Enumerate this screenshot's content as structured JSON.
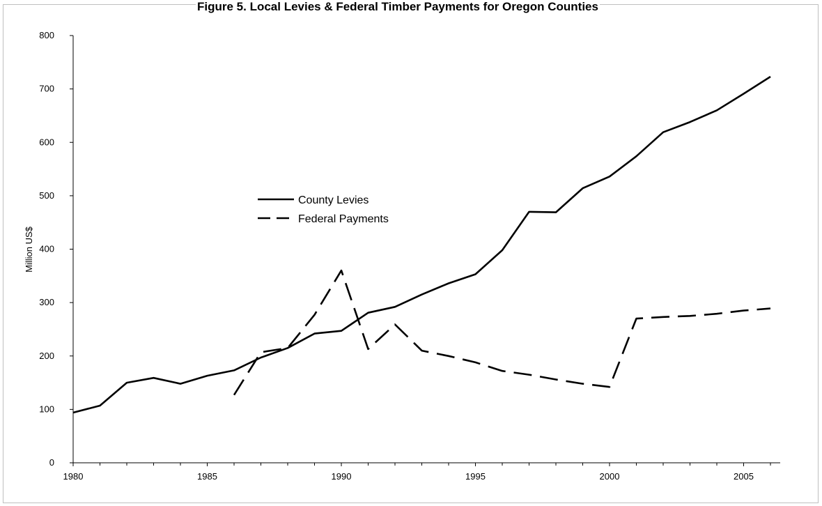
{
  "chart_data": {
    "type": "line",
    "title": "Figure 5. Local Levies & Federal Timber Payments for Oregon Counties",
    "xlabel": "",
    "ylabel": "Million US$",
    "xlim": [
      1980,
      2006
    ],
    "ylim": [
      0,
      800
    ],
    "x_ticks": [
      1980,
      1985,
      1990,
      1995,
      2000,
      2005
    ],
    "y_ticks": [
      0,
      100,
      200,
      300,
      400,
      500,
      600,
      700,
      800
    ],
    "grid": false,
    "legend_position": "left-center",
    "series": [
      {
        "name": "County Levies",
        "style": "solid",
        "color": "#000000",
        "x": [
          1980,
          1981,
          1982,
          1983,
          1984,
          1985,
          1986,
          1987,
          1988,
          1989,
          1990,
          1991,
          1992,
          1993,
          1994,
          1995,
          1996,
          1997,
          1998,
          1999,
          2000,
          2001,
          2002,
          2003,
          2004,
          2005,
          2006
        ],
        "y": [
          94,
          107,
          150,
          159,
          148,
          163,
          173,
          197,
          215,
          242,
          247,
          281,
          292,
          315,
          336,
          353,
          398,
          470,
          469,
          514,
          536,
          574,
          619,
          638,
          660,
          691,
          723
        ]
      },
      {
        "name": "Federal Payments",
        "style": "dashed",
        "color": "#000000",
        "x": [
          1986,
          1987,
          1988,
          1989,
          1990,
          1991,
          1992,
          1993,
          1994,
          1995,
          1996,
          1997,
          1998,
          1999,
          2000,
          2001,
          2002,
          2003,
          2004,
          2005,
          2006
        ],
        "y": [
          127,
          207,
          215,
          277,
          360,
          213,
          259,
          210,
          200,
          188,
          172,
          165,
          156,
          148,
          142,
          270,
          273,
          275,
          279,
          285,
          289
        ]
      }
    ]
  }
}
